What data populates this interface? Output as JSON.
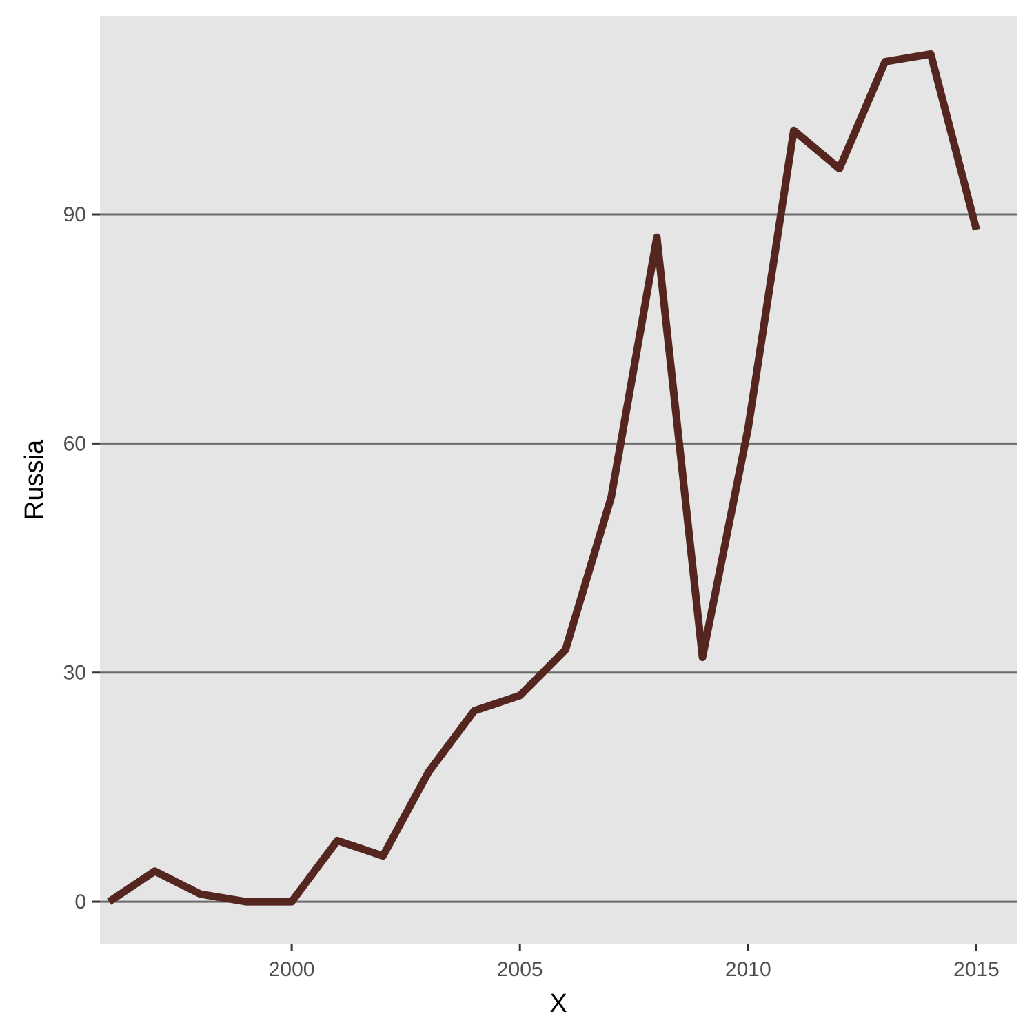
{
  "chart_data": {
    "type": "line",
    "title": "",
    "xlabel": "X",
    "ylabel": "Russia",
    "xlim": [
      1995.8,
      2015.9
    ],
    "ylim": [
      -5.5,
      116
    ],
    "x_ticks": [
      2000,
      2005,
      2010,
      2015
    ],
    "y_ticks": [
      0,
      30,
      60,
      90
    ],
    "grid": {
      "major_y": true,
      "major_x": false
    },
    "legend": "none",
    "series": [
      {
        "x": [
          1996,
          1997,
          1998,
          1999,
          2000,
          2001,
          2002,
          2003,
          2004,
          2005,
          2006,
          2007,
          2008,
          2009,
          2010,
          2011,
          2012,
          2013,
          2014,
          2015
        ],
        "values": [
          0,
          4,
          1,
          0,
          0,
          8,
          6,
          17,
          25,
          27,
          33,
          53,
          87,
          32,
          62,
          101,
          96,
          110,
          111,
          88
        ]
      }
    ]
  },
  "colors": {
    "panel_background": "#E5E5E5",
    "gridline": "#6B6B6B",
    "line": "#55251F",
    "tick_text": "#4D4D4D",
    "title_text": "#000000"
  }
}
